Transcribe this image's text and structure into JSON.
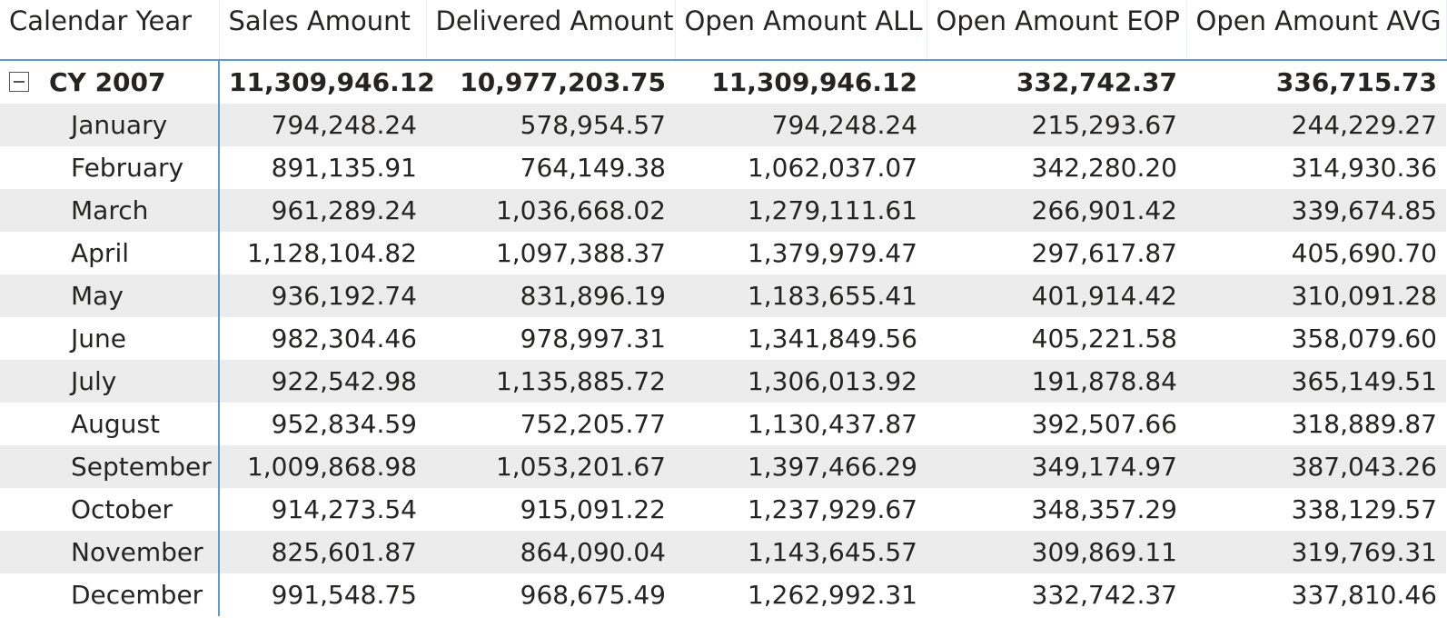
{
  "table": {
    "headers": [
      "Calendar Year",
      "Sales Amount",
      "Delivered Amount",
      "Open Amount ALL",
      "Open Amount EOP",
      "Open Amount AVG"
    ],
    "subtotal": {
      "label": "CY 2007",
      "values": [
        "11,309,946.12",
        "10,977,203.75",
        "11,309,946.12",
        "332,742.37",
        "336,715.73"
      ]
    },
    "rows": [
      {
        "label": "January",
        "values": [
          "794,248.24",
          "578,954.57",
          "794,248.24",
          "215,293.67",
          "244,229.27"
        ]
      },
      {
        "label": "February",
        "values": [
          "891,135.91",
          "764,149.38",
          "1,062,037.07",
          "342,280.20",
          "314,930.36"
        ]
      },
      {
        "label": "March",
        "values": [
          "961,289.24",
          "1,036,668.02",
          "1,279,111.61",
          "266,901.42",
          "339,674.85"
        ]
      },
      {
        "label": "April",
        "values": [
          "1,128,104.82",
          "1,097,388.37",
          "1,379,979.47",
          "297,617.87",
          "405,690.70"
        ]
      },
      {
        "label": "May",
        "values": [
          "936,192.74",
          "831,896.19",
          "1,183,655.41",
          "401,914.42",
          "310,091.28"
        ]
      },
      {
        "label": "June",
        "values": [
          "982,304.46",
          "978,997.31",
          "1,341,849.56",
          "405,221.58",
          "358,079.60"
        ]
      },
      {
        "label": "July",
        "values": [
          "922,542.98",
          "1,135,885.72",
          "1,306,013.92",
          "191,878.84",
          "365,149.51"
        ]
      },
      {
        "label": "August",
        "values": [
          "952,834.59",
          "752,205.77",
          "1,130,437.87",
          "392,507.66",
          "318,889.87"
        ]
      },
      {
        "label": "September",
        "values": [
          "1,009,868.98",
          "1,053,201.67",
          "1,397,466.29",
          "349,174.97",
          "387,043.26"
        ]
      },
      {
        "label": "October",
        "values": [
          "914,273.54",
          "915,091.22",
          "1,237,929.67",
          "348,357.29",
          "338,129.57"
        ]
      },
      {
        "label": "November",
        "values": [
          "825,601.87",
          "864,090.04",
          "1,143,645.57",
          "309,869.11",
          "319,769.31"
        ]
      },
      {
        "label": "December",
        "values": [
          "991,548.75",
          "968,675.49",
          "1,262,992.31",
          "332,742.37",
          "337,810.46"
        ]
      }
    ]
  },
  "colors": {
    "accent": "#5b9bd5",
    "stripe": "#ececec",
    "text": "#252423"
  },
  "icons": {
    "collapse": "minus-square-icon"
  }
}
